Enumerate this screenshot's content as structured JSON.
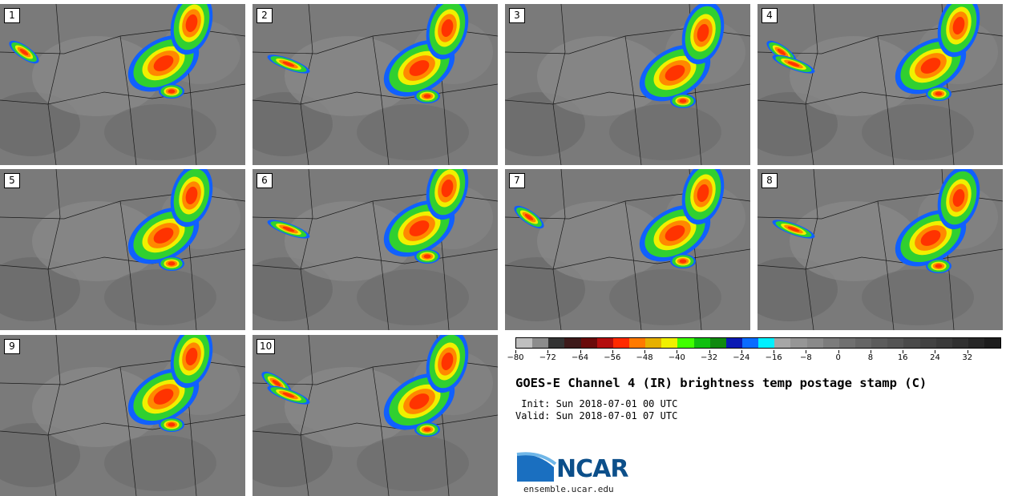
{
  "panels": [
    {
      "label": "1"
    },
    {
      "label": "2"
    },
    {
      "label": "3"
    },
    {
      "label": "4"
    },
    {
      "label": "5"
    },
    {
      "label": "6"
    },
    {
      "label": "7"
    },
    {
      "label": "8"
    },
    {
      "label": "9"
    },
    {
      "label": "10"
    }
  ],
  "colorbar": {
    "colors": [
      "#bfbfbf",
      "#8c8c8c",
      "#333333",
      "#3d1a1a",
      "#6a0a0a",
      "#b40e0e",
      "#ff2a00",
      "#ff7a00",
      "#e6b000",
      "#f0f000",
      "#40ff00",
      "#10c010",
      "#108a10",
      "#0a1ab4",
      "#0a6cff",
      "#00f0ff",
      "#a6a6a6",
      "#969696",
      "#8a8a8a",
      "#7c7c7c",
      "#707070",
      "#666666",
      "#5c5c5c",
      "#545454",
      "#4a4a4a",
      "#424242",
      "#3a3a3a",
      "#303030",
      "#262626",
      "#1c1c1c"
    ],
    "ticks": [
      "−80",
      "−72",
      "−64",
      "−56",
      "−48",
      "−40",
      "−32",
      "−24",
      "−16",
      "−8",
      "0",
      "8",
      "16",
      "24",
      "32"
    ]
  },
  "title": "GOES-E Channel 4 (IR) brightness temp postage stamp (C)",
  "init_line": " Init: Sun 2018-07-01 00 UTC",
  "valid_line": "Valid: Sun 2018-07-01 07 UTC",
  "logo_text": "NCAR",
  "site": "ensemble.ucar.edu",
  "colors": {
    "cloud_cold": "#ff3300",
    "cloud_mid": "#f0f000",
    "cloud_edge": "#30d030",
    "cloud_rim": "#1060ff",
    "background": "#7a7a7a"
  }
}
